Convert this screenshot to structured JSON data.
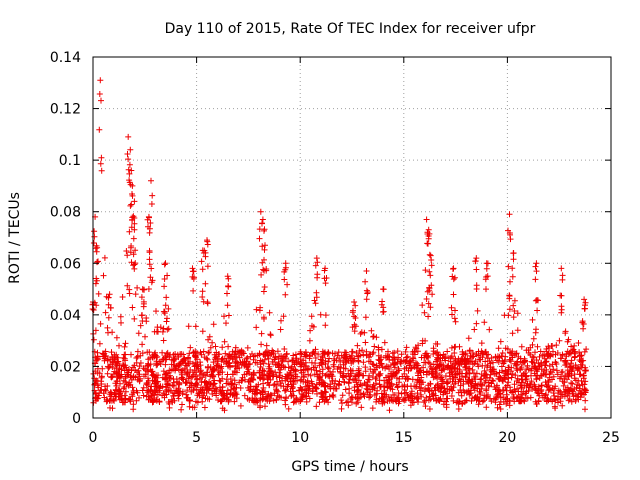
{
  "chart_data": {
    "type": "scatter",
    "title": "Day 110 of 2015, Rate Of TEC Index for receiver ufpr",
    "xlabel": "GPS time / hours",
    "ylabel": "ROTI / TECUs",
    "xlim": [
      0,
      25
    ],
    "ylim": [
      0,
      0.14
    ],
    "xticks": [
      0,
      5,
      10,
      15,
      20,
      25
    ],
    "yticks": [
      0,
      0.02,
      0.04,
      0.06,
      0.08,
      0.1,
      0.12,
      0.14
    ],
    "grid": true,
    "marker": "plus",
    "color": "#ee0000",
    "series": [
      {
        "name": "ROTI",
        "x_range": [
          0,
          23.8
        ],
        "description_baseline": "dense band mostly between 0.005 and 0.03 TECU/s",
        "peaks": [
          {
            "x": 0.0,
            "y": 0.045
          },
          {
            "x": 0.1,
            "y": 0.078
          },
          {
            "x": 0.2,
            "y": 0.066
          },
          {
            "x": 0.35,
            "y": 0.131
          },
          {
            "x": 0.8,
            "y": 0.048
          },
          {
            "x": 1.7,
            "y": 0.109
          },
          {
            "x": 1.8,
            "y": 0.104
          },
          {
            "x": 1.85,
            "y": 0.096
          },
          {
            "x": 1.9,
            "y": 0.09
          },
          {
            "x": 2.0,
            "y": 0.084
          },
          {
            "x": 2.0,
            "y": 0.073
          },
          {
            "x": 2.4,
            "y": 0.05
          },
          {
            "x": 2.7,
            "y": 0.078
          },
          {
            "x": 2.8,
            "y": 0.092
          },
          {
            "x": 3.5,
            "y": 0.06
          },
          {
            "x": 4.8,
            "y": 0.058
          },
          {
            "x": 5.3,
            "y": 0.065
          },
          {
            "x": 5.5,
            "y": 0.069
          },
          {
            "x": 6.5,
            "y": 0.055
          },
          {
            "x": 8.1,
            "y": 0.08
          },
          {
            "x": 8.2,
            "y": 0.077
          },
          {
            "x": 8.3,
            "y": 0.067
          },
          {
            "x": 9.3,
            "y": 0.06
          },
          {
            "x": 10.8,
            "y": 0.062
          },
          {
            "x": 11.2,
            "y": 0.058
          },
          {
            "x": 12.6,
            "y": 0.045
          },
          {
            "x": 13.2,
            "y": 0.057
          },
          {
            "x": 14.0,
            "y": 0.05
          },
          {
            "x": 16.1,
            "y": 0.077
          },
          {
            "x": 16.2,
            "y": 0.073
          },
          {
            "x": 16.3,
            "y": 0.063
          },
          {
            "x": 17.4,
            "y": 0.058
          },
          {
            "x": 18.5,
            "y": 0.062
          },
          {
            "x": 19.0,
            "y": 0.06
          },
          {
            "x": 20.1,
            "y": 0.079
          },
          {
            "x": 20.3,
            "y": 0.064
          },
          {
            "x": 21.4,
            "y": 0.06
          },
          {
            "x": 22.6,
            "y": 0.058
          },
          {
            "x": 23.7,
            "y": 0.046
          }
        ]
      }
    ]
  }
}
